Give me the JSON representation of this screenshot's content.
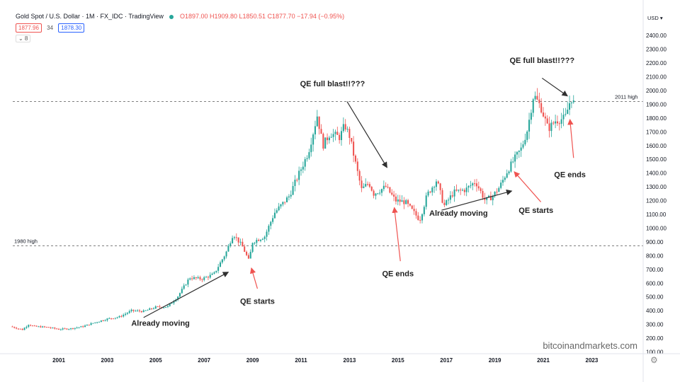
{
  "header": {
    "symbol": "Gold Spot / U.S. Dollar · 1M · FX_IDC · TradingView",
    "ohlc": "O1897.00 H1909.80 L1850.51 C1877.70 −17.94 (−0.95%)",
    "bid": "1877.96",
    "spread": "34",
    "ask": "1878.30",
    "collapse": "⌄ 8"
  },
  "watermark": "bitcoinandmarkets.com",
  "colors": {
    "up": "#26a69a",
    "down": "#ef5350",
    "arrow_dark": "#2f2f2f",
    "arrow_red": "#ef5350"
  },
  "chart_data": {
    "type": "candlestick",
    "x_unit": "year",
    "xlim": [
      1999.0,
      2023.6
    ],
    "ylim": [
      100,
      2500
    ],
    "currency": "USD",
    "y_ticks": [
      100,
      200,
      300,
      400,
      500,
      600,
      700,
      800,
      900,
      1000,
      1100,
      1200,
      1300,
      1400,
      1500,
      1600,
      1700,
      1800,
      1900,
      2000,
      2100,
      2200,
      2300,
      2400
    ],
    "y_tick_labels": [
      "100.00",
      "200.00",
      "300.00",
      "400.00",
      "500.00",
      "600.00",
      "700.00",
      "800.00",
      "900.00",
      "1000.00",
      "1100.00",
      "1200.00",
      "1300.00",
      "1400.00",
      "1500.00",
      "1600.00",
      "1700.00",
      "1800.00",
      "1900.00",
      "2000.00",
      "2100.00",
      "2200.00",
      "2300.00",
      "2400.00"
    ],
    "x_ticks": [
      2001,
      2003,
      2005,
      2007,
      2009,
      2011,
      2013,
      2015,
      2017,
      2019,
      2021,
      2023
    ],
    "x_tick_labels": [
      "2001",
      "2003",
      "2005",
      "2007",
      "2009",
      "2011",
      "2013",
      "2015",
      "2017",
      "2019",
      "2021",
      "2023"
    ],
    "price_path": [
      [
        1999.0,
        285
      ],
      [
        1999.5,
        262
      ],
      [
        1999.75,
        300
      ],
      [
        2000.0,
        285
      ],
      [
        2000.5,
        280
      ],
      [
        2001.0,
        265
      ],
      [
        2001.5,
        270
      ],
      [
        2002.0,
        285
      ],
      [
        2002.5,
        315
      ],
      [
        2003.0,
        340
      ],
      [
        2003.5,
        355
      ],
      [
        2004.0,
        400
      ],
      [
        2004.5,
        395
      ],
      [
        2005.0,
        425
      ],
      [
        2005.5,
        430
      ],
      [
        2005.9,
        500
      ],
      [
        2006.4,
        640
      ],
      [
        2006.9,
        630
      ],
      [
        2007.4,
        665
      ],
      [
        2007.9,
        820
      ],
      [
        2008.2,
        960
      ],
      [
        2008.6,
        860
      ],
      [
        2008.85,
        760
      ],
      [
        2009.0,
        900
      ],
      [
        2009.5,
        940
      ],
      [
        2009.9,
        1110
      ],
      [
        2010.5,
        1230
      ],
      [
        2010.95,
        1410
      ],
      [
        2011.3,
        1550
      ],
      [
        2011.67,
        1820
      ],
      [
        2011.9,
        1600
      ],
      [
        2012.2,
        1690
      ],
      [
        2012.6,
        1660
      ],
      [
        2012.8,
        1750
      ],
      [
        2013.0,
        1670
      ],
      [
        2013.3,
        1430
      ],
      [
        2013.5,
        1280
      ],
      [
        2013.8,
        1330
      ],
      [
        2014.0,
        1250
      ],
      [
        2014.5,
        1300
      ],
      [
        2014.9,
        1200
      ],
      [
        2015.3,
        1190
      ],
      [
        2015.9,
        1060
      ],
      [
        2016.2,
        1240
      ],
      [
        2016.6,
        1350
      ],
      [
        2016.9,
        1160
      ],
      [
        2017.3,
        1260
      ],
      [
        2017.8,
        1280
      ],
      [
        2018.2,
        1340
      ],
      [
        2018.6,
        1200
      ],
      [
        2018.9,
        1230
      ],
      [
        2019.2,
        1300
      ],
      [
        2019.5,
        1410
      ],
      [
        2019.8,
        1500
      ],
      [
        2020.1,
        1580
      ],
      [
        2020.35,
        1720
      ],
      [
        2020.6,
        1970
      ],
      [
        2020.9,
        1880
      ],
      [
        2021.2,
        1720
      ],
      [
        2021.5,
        1780
      ],
      [
        2021.9,
        1800
      ],
      [
        2022.15,
        1950
      ],
      [
        2022.33,
        1878
      ]
    ],
    "last_close": 1877.7,
    "horizontal_levels": [
      {
        "label": "2011 high",
        "value": 1920.0,
        "tag": "1920.00"
      },
      {
        "label": "1980 high",
        "value": 871.92,
        "tag": "871.92"
      }
    ],
    "current_price_tag": "1877.70",
    "annotations": [
      {
        "text": "Already moving",
        "x": 2005.2,
        "y": 290,
        "arrow_from": [
          2004.5,
          350
        ],
        "arrow_to": [
          2008.0,
          680
        ],
        "color": "dark"
      },
      {
        "text": "QE starts",
        "x": 2009.2,
        "y": 450,
        "arrow_from": [
          2009.2,
          560
        ],
        "arrow_to": [
          2008.95,
          710
        ],
        "color": "red"
      },
      {
        "text": "QE full blast!!???",
        "x": 2012.3,
        "y": 2030,
        "arrow_from": [
          2012.9,
          1920
        ],
        "arrow_to": [
          2014.55,
          1440
        ],
        "color": "dark"
      },
      {
        "text": "QE ends",
        "x": 2015.0,
        "y": 650,
        "arrow_from": [
          2015.1,
          760
        ],
        "arrow_to": [
          2014.85,
          1150
        ],
        "color": "red"
      },
      {
        "text": "Already moving",
        "x": 2017.5,
        "y": 1090,
        "arrow_from": [
          2016.8,
          1130
        ],
        "arrow_to": [
          2019.7,
          1270
        ],
        "color": "dark"
      },
      {
        "text": "QE starts",
        "x": 2020.7,
        "y": 1110,
        "arrow_from": [
          2020.9,
          1190
        ],
        "arrow_to": [
          2019.8,
          1410
        ],
        "color": "red"
      },
      {
        "text": "QE full blast!!???",
        "x": 2020.95,
        "y": 2200,
        "arrow_from": [
          2020.95,
          2090
        ],
        "arrow_to": [
          2022.0,
          1960
        ],
        "color": "dark"
      },
      {
        "text": "QE ends",
        "x": 2022.1,
        "y": 1370,
        "arrow_from": [
          2022.25,
          1510
        ],
        "arrow_to": [
          2022.1,
          1790
        ],
        "color": "red"
      }
    ]
  }
}
